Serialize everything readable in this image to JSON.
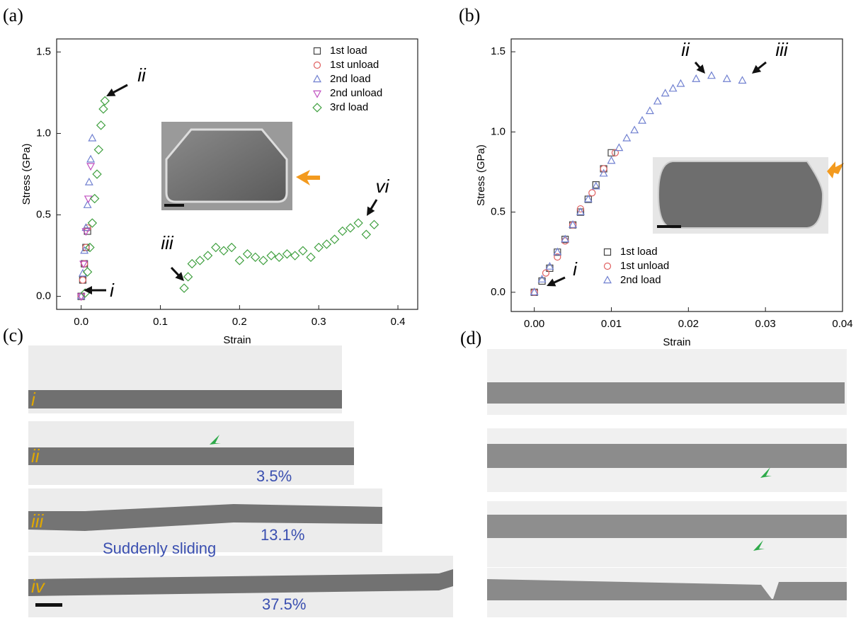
{
  "chart_data": [
    {
      "type": "scatter",
      "panel_label": "(a)",
      "x_label": "Strain",
      "y_label": "Stress (GPa)",
      "xlim": [
        -0.031,
        0.425
      ],
      "ylim": [
        -0.08,
        1.58
      ],
      "xticks": [
        {
          "value": 0,
          "label": "0.0"
        },
        0.1,
        0.2,
        0.3,
        0.4
      ],
      "yticks": [
        {
          "value": 0,
          "label": "0.0"
        },
        0.5,
        {
          "value": 1,
          "label": "1.0"
        },
        1.5
      ],
      "legend": "upper right",
      "annotations": [
        "i",
        "ii",
        "iii",
        "vi"
      ],
      "series": [
        {
          "name": "1st load",
          "marker": "square",
          "color": "#444444",
          "x": [
            0,
            0.002,
            0.004,
            0.006,
            0.008
          ],
          "values": [
            0,
            0.1,
            0.2,
            0.3,
            0.4
          ]
        },
        {
          "name": "1st unload",
          "marker": "circle",
          "color": "#e06060",
          "x": [
            0.008,
            0.006,
            0.004,
            0.002,
            0
          ],
          "values": [
            0.42,
            0.3,
            0.2,
            0.1,
            0
          ]
        },
        {
          "name": "2nd load",
          "marker": "triangle-up",
          "color": "#7080d0",
          "x": [
            0,
            0.002,
            0.004,
            0.006,
            0.008,
            0.01,
            0.012,
            0.014
          ],
          "values": [
            0,
            0.14,
            0.28,
            0.42,
            0.56,
            0.7,
            0.84,
            0.97
          ]
        },
        {
          "name": "2nd unload",
          "marker": "triangle-down",
          "color": "#c050c0",
          "x": [
            0.012,
            0.009,
            0.006,
            0.003,
            0
          ],
          "values": [
            0.8,
            0.6,
            0.4,
            0.2,
            0
          ]
        },
        {
          "name": "3rd load",
          "marker": "diamond",
          "color": "#40a040",
          "x": [
            0.005,
            0.008,
            0.011,
            0.014,
            0.017,
            0.02,
            0.022,
            0.025,
            0.028,
            0.03,
            0.13,
            0.135,
            0.14,
            0.15,
            0.16,
            0.17,
            0.18,
            0.19,
            0.2,
            0.21,
            0.22,
            0.23,
            0.24,
            0.25,
            0.26,
            0.27,
            0.28,
            0.29,
            0.3,
            0.31,
            0.32,
            0.33,
            0.34,
            0.35,
            0.36,
            0.37
          ],
          "values": [
            0.02,
            0.15,
            0.3,
            0.45,
            0.6,
            0.75,
            0.9,
            1.05,
            1.15,
            1.2,
            0.05,
            0.12,
            0.2,
            0.22,
            0.25,
            0.3,
            0.28,
            0.3,
            0.22,
            0.26,
            0.24,
            0.22,
            0.25,
            0.24,
            0.26,
            0.25,
            0.28,
            0.24,
            0.3,
            0.32,
            0.35,
            0.4,
            0.42,
            0.45,
            0.38,
            0.44
          ]
        }
      ]
    },
    {
      "type": "scatter",
      "panel_label": "(b)",
      "x_label": "Strain",
      "y_label": "Stress (GPa)",
      "xlim": [
        -0.003,
        0.04
      ],
      "ylim": [
        -0.12,
        1.58
      ],
      "xticks": [
        {
          "value": 0,
          "label": "0.00"
        },
        0.01,
        0.02,
        0.03,
        0.04
      ],
      "yticks": [
        {
          "value": 0,
          "label": "0.0"
        },
        0.5,
        {
          "value": 1,
          "label": "1.0"
        },
        1.5
      ],
      "legend": "lower center",
      "annotations": [
        "i",
        "ii",
        "iii"
      ],
      "series": [
        {
          "name": "1st load",
          "marker": "square",
          "color": "#444444",
          "x": [
            0,
            0.001,
            0.002,
            0.003,
            0.004,
            0.005,
            0.006,
            0.007,
            0.008,
            0.009,
            0.01
          ],
          "values": [
            0,
            0.07,
            0.15,
            0.25,
            0.33,
            0.42,
            0.5,
            0.58,
            0.67,
            0.77,
            0.87
          ]
        },
        {
          "name": "1st unload",
          "marker": "circle",
          "color": "#e06060",
          "x": [
            0.0105,
            0.009,
            0.0075,
            0.006,
            0.005,
            0.004,
            0.003,
            0.0015,
            0
          ],
          "values": [
            0.87,
            0.77,
            0.62,
            0.52,
            0.42,
            0.32,
            0.22,
            0.12,
            0
          ]
        },
        {
          "name": "2nd load",
          "marker": "triangle-up",
          "color": "#7080d0",
          "x": [
            0,
            0.001,
            0.002,
            0.003,
            0.004,
            0.005,
            0.006,
            0.007,
            0.008,
            0.009,
            0.01,
            0.011,
            0.012,
            0.013,
            0.014,
            0.015,
            0.016,
            0.017,
            0.018,
            0.019,
            0.021,
            0.023,
            0.025,
            0.027
          ],
          "values": [
            0,
            0.08,
            0.16,
            0.25,
            0.33,
            0.42,
            0.5,
            0.58,
            0.66,
            0.74,
            0.82,
            0.9,
            0.96,
            1.01,
            1.07,
            1.13,
            1.19,
            1.24,
            1.27,
            1.3,
            1.33,
            1.35,
            1.33,
            1.32
          ]
        }
      ]
    }
  ],
  "micrographs": {
    "c": {
      "panel_label": "(c)",
      "frames": [
        "i",
        "ii",
        "iii",
        "iv"
      ],
      "strains": [
        "3.5%",
        "13.1%",
        "37.5%"
      ],
      "note": "Suddenly sliding"
    },
    "d": {
      "panel_label": "(d)"
    }
  }
}
